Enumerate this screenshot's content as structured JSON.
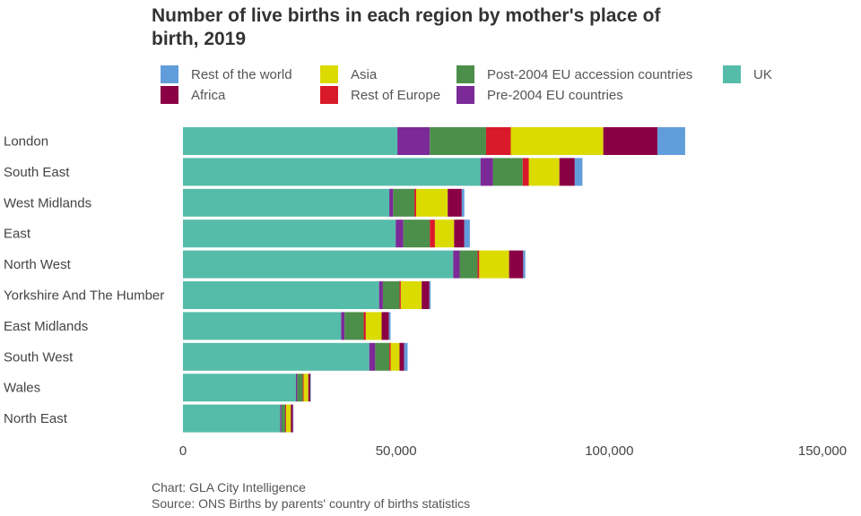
{
  "chart_data": {
    "type": "bar",
    "orientation": "horizontal",
    "stacked": true,
    "title_lines": [
      "Number of live births in each region by mother's place of",
      "birth, 2019"
    ],
    "categories": [
      "London",
      "South East",
      "West Midlands",
      "East",
      "North West",
      "Yorkshire And The Humber",
      "East Midlands",
      "South West",
      "Wales",
      "North East"
    ],
    "series": [
      {
        "name": "UK",
        "color": "#56bcaa",
        "values": [
          50300,
          69800,
          48400,
          49900,
          63400,
          46000,
          37100,
          43700,
          26500,
          22800
        ]
      },
      {
        "name": "Pre-2004 EU countries",
        "color": "#7b2a98",
        "values": [
          7600,
          2900,
          900,
          1800,
          1500,
          900,
          800,
          1400,
          300,
          300
        ]
      },
      {
        "name": "Post-2004 EU accession countries",
        "color": "#4c8f4a",
        "values": [
          13200,
          7000,
          5000,
          6200,
          4200,
          3900,
          4500,
          3300,
          1300,
          900
        ]
      },
      {
        "name": "Rest of Europe",
        "color": "#d91a2a",
        "values": [
          5800,
          1400,
          400,
          1200,
          400,
          300,
          500,
          300,
          200,
          200
        ]
      },
      {
        "name": "Asia",
        "color": "#dbdb00",
        "values": [
          21700,
          7200,
          7400,
          4500,
          7000,
          4900,
          3700,
          2100,
          1100,
          1100
        ]
      },
      {
        "name": "Africa",
        "color": "#8b0044",
        "values": [
          12700,
          3600,
          3300,
          2400,
          3300,
          1800,
          1700,
          1100,
          500,
          500
        ]
      },
      {
        "name": "Rest of the world",
        "color": "#629ddb",
        "values": [
          6500,
          1800,
          600,
          1300,
          500,
          300,
          400,
          800,
          100,
          100
        ]
      }
    ],
    "legend_order": [
      "Rest of the world",
      "Asia",
      "Post-2004 EU accession countries",
      "UK",
      "Africa",
      "Rest of Europe",
      "Pre-2004 EU countries"
    ],
    "legend_placement": "top",
    "xlim": [
      0,
      150000
    ],
    "xticks": [
      0,
      50000,
      100000,
      150000
    ],
    "xtick_labels": [
      "0",
      "50,000",
      "100,000",
      "150,000"
    ],
    "xlabel": "",
    "ylabel": "",
    "grid": false
  },
  "footer": {
    "credit": "Chart: GLA City Intelligence",
    "source": "Source: ONS Births by parents' country of births statistics"
  }
}
